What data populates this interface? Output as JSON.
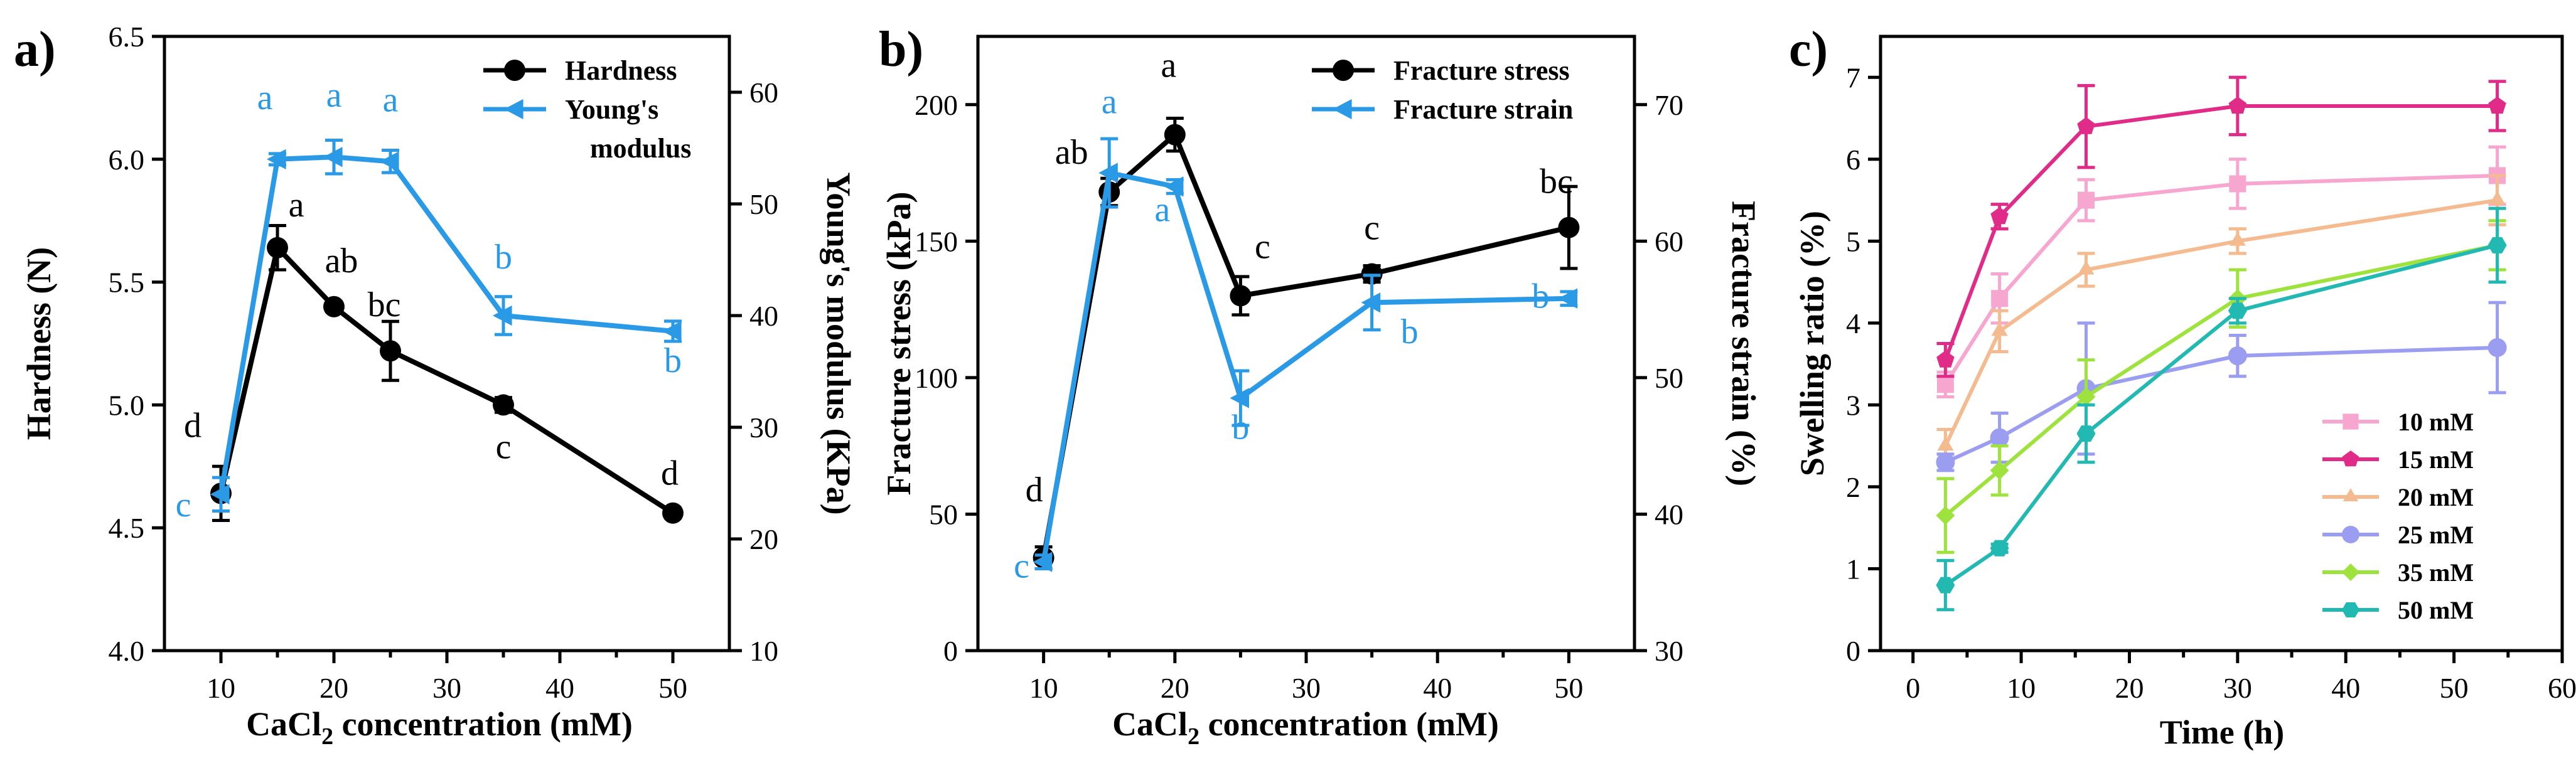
{
  "colors": {
    "black": "#000000",
    "blue": "#2a9ae6"
  },
  "chart_data": [
    {
      "type": "line",
      "panel_label": "a)",
      "xlabel_pre": "CaCl",
      "xlabel_sub": "2",
      "xlabel_post": " concentration (mM)",
      "ylabel": "Hardness (N)",
      "y2label": "Young's modulus (KPa)",
      "xlim": [
        5,
        55
      ],
      "ylim": [
        4.0,
        6.5
      ],
      "y2lim": [
        10,
        65
      ],
      "xticks": [
        10,
        20,
        30,
        40,
        50
      ],
      "yticks": [
        4.0,
        4.5,
        5.0,
        5.5,
        6.0,
        6.5
      ],
      "y2ticks": [
        10,
        20,
        30,
        40,
        50,
        60
      ],
      "x": [
        10,
        15,
        20,
        25,
        35,
        50
      ],
      "series": [
        {
          "name": "Hardness",
          "axis": "left",
          "color": "#000000",
          "marker": "circle",
          "values": [
            4.64,
            5.64,
            5.4,
            5.22,
            5.0,
            4.56
          ],
          "errors": [
            0.11,
            0.09,
            0.02,
            0.12,
            0.03,
            0.02
          ],
          "letters": [
            "d",
            "a",
            "ab",
            "bc",
            "c",
            "d"
          ]
        },
        {
          "name": "Young's modulus",
          "axis": "right",
          "color": "#2a9ae6",
          "marker": "triangle-left",
          "values": [
            24,
            54,
            54.2,
            53.8,
            40,
            38.6
          ],
          "errors": [
            1.5,
            0.5,
            1.5,
            1.0,
            1.7,
            0.9
          ],
          "letters": [
            "c",
            "a",
            "a",
            "a",
            "b",
            "b"
          ]
        }
      ],
      "legend": [
        "Hardness",
        "Young's",
        "modulus"
      ]
    },
    {
      "type": "line",
      "panel_label": "b)",
      "xlabel_pre": "CaCl",
      "xlabel_sub": "2",
      "xlabel_post": " concentration (mM)",
      "ylabel": "Fracture stress (kPa)",
      "y2label": "Fracture strain (%)",
      "xlim": [
        5,
        55
      ],
      "ylim": [
        0,
        225
      ],
      "y2lim": [
        30,
        75
      ],
      "xticks": [
        10,
        20,
        30,
        40,
        50
      ],
      "yticks": [
        0,
        50,
        100,
        150,
        200
      ],
      "y2ticks": [
        30,
        40,
        50,
        60,
        70
      ],
      "x": [
        10,
        15,
        20,
        25,
        35,
        50
      ],
      "series": [
        {
          "name": "Fracture stress",
          "axis": "left",
          "color": "#000000",
          "marker": "circle",
          "values": [
            34,
            168,
            189,
            130,
            138,
            155
          ],
          "errors": [
            4,
            5,
            6,
            7,
            3,
            15
          ],
          "letters": [
            "d",
            "ab",
            "a",
            "c",
            "c",
            "bc"
          ]
        },
        {
          "name": "Fracture strain",
          "axis": "right",
          "color": "#2a9ae6",
          "marker": "triangle-left",
          "values": [
            36.5,
            65,
            64,
            48.5,
            55.5,
            55.8
          ],
          "errors": [
            0.5,
            2.5,
            0.5,
            2.0,
            2.0,
            0.5
          ],
          "letters": [
            "c",
            "a",
            "a",
            "b",
            "b",
            "b"
          ]
        }
      ],
      "legend": [
        "Fracture stress",
        "Fracture strain"
      ]
    },
    {
      "type": "line",
      "panel_label": "c)",
      "xlabel": "Time (h)",
      "ylabel": "Swelling ratio (%)",
      "xlim": [
        -3,
        60
      ],
      "ylim": [
        0,
        7.5
      ],
      "xticks": [
        0,
        10,
        20,
        30,
        40,
        50,
        60
      ],
      "yticks": [
        0,
        1,
        2,
        3,
        4,
        5,
        6,
        7
      ],
      "x": [
        3,
        8,
        16,
        30,
        54
      ],
      "series": [
        {
          "name": "10 mM",
          "color": "#f7a6cf",
          "marker": "square",
          "values": [
            3.25,
            4.3,
            5.5,
            5.7,
            5.8
          ],
          "errors": [
            0.15,
            0.3,
            0.25,
            0.3,
            0.35
          ]
        },
        {
          "name": "15 mM",
          "color": "#e02b88",
          "marker": "pentagon",
          "values": [
            3.55,
            5.3,
            6.4,
            6.65,
            6.65
          ],
          "errors": [
            0.2,
            0.15,
            0.5,
            0.35,
            0.3
          ]
        },
        {
          "name": "20 mM",
          "color": "#f5bb90",
          "marker": "triangle-up",
          "values": [
            2.5,
            3.9,
            4.65,
            5.0,
            5.5
          ],
          "errors": [
            0.2,
            0.25,
            0.2,
            0.15,
            0.3
          ]
        },
        {
          "name": "25 mM",
          "color": "#9b9ef0",
          "marker": "circle",
          "values": [
            2.3,
            2.6,
            3.2,
            3.6,
            3.7
          ],
          "errors": [
            0.1,
            0.3,
            0.8,
            0.25,
            0.55
          ]
        },
        {
          "name": "35 mM",
          "color": "#9ee33d",
          "marker": "diamond",
          "values": [
            1.65,
            2.2,
            3.1,
            4.3,
            4.95
          ],
          "errors": [
            0.45,
            0.3,
            0.45,
            0.35,
            0.3
          ]
        },
        {
          "name": "50 mM",
          "color": "#22b9b2",
          "marker": "hexagon",
          "values": [
            0.8,
            1.25,
            2.65,
            4.15,
            4.95
          ],
          "errors": [
            0.3,
            0.05,
            0.35,
            0.15,
            0.45
          ]
        }
      ]
    }
  ]
}
